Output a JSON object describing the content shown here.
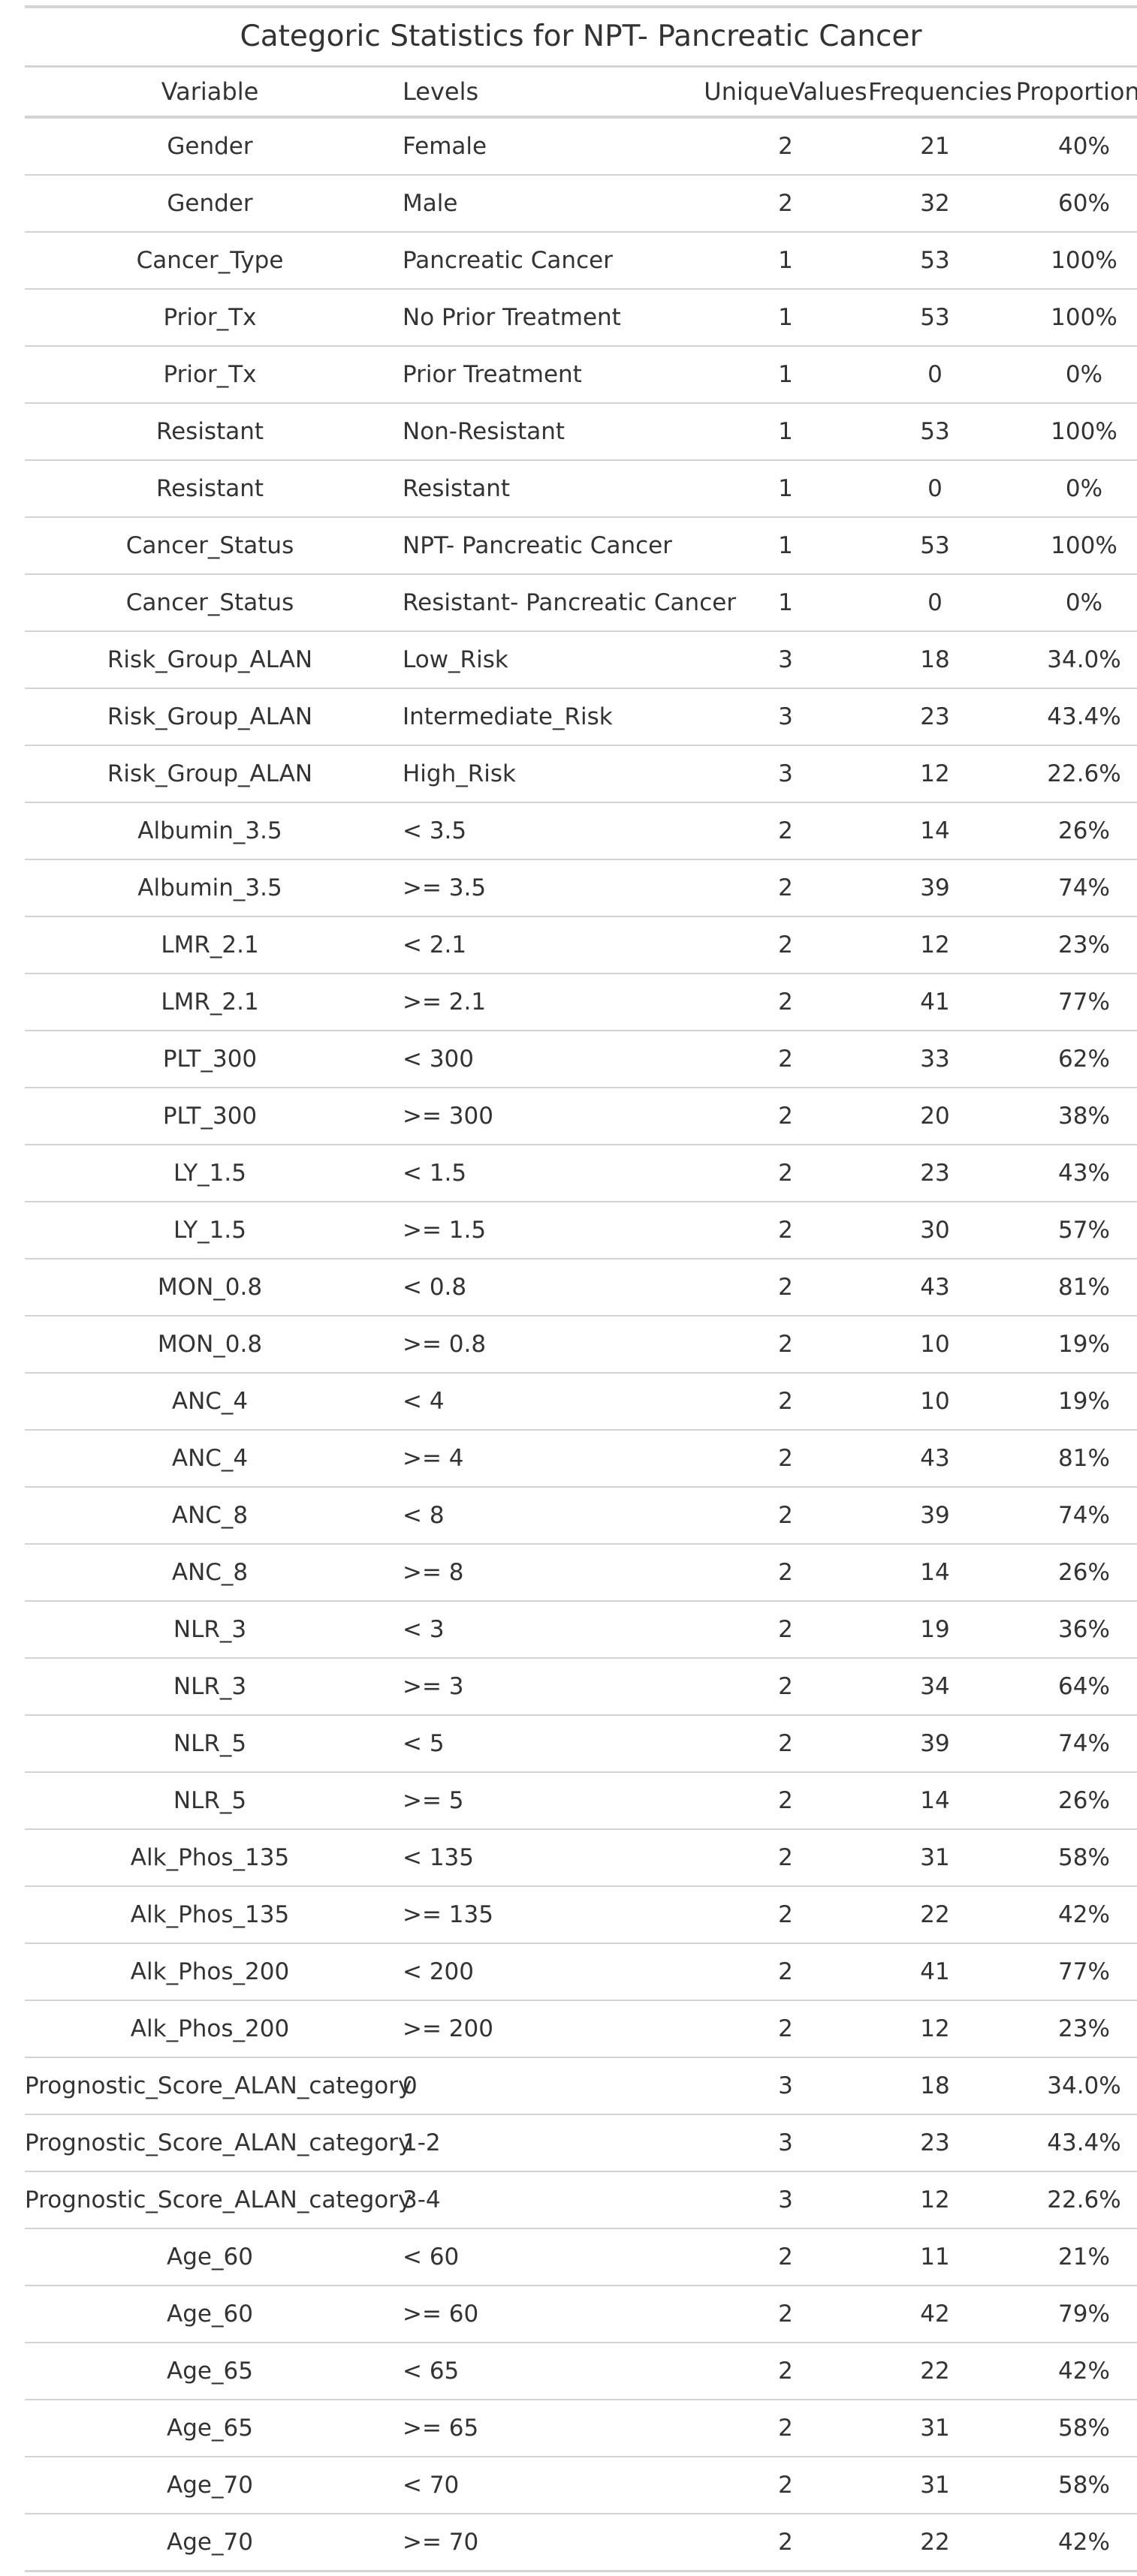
{
  "table": {
    "title": "Categoric Statistics for NPT- Pancreatic Cancer",
    "columns": [
      "Variable",
      "Levels",
      "UniqueValues",
      "Frequencies",
      "Proportions"
    ],
    "rows": [
      [
        "Gender",
        "Female",
        "2",
        "21",
        "40%"
      ],
      [
        "Gender",
        "Male",
        "2",
        "32",
        "60%"
      ],
      [
        "Cancer_Type",
        "Pancreatic Cancer",
        "1",
        "53",
        "100%"
      ],
      [
        "Prior_Tx",
        "No Prior Treatment",
        "1",
        "53",
        "100%"
      ],
      [
        "Prior_Tx",
        "Prior Treatment",
        "1",
        "0",
        "0%"
      ],
      [
        "Resistant",
        "Non-Resistant",
        "1",
        "53",
        "100%"
      ],
      [
        "Resistant",
        "Resistant",
        "1",
        "0",
        "0%"
      ],
      [
        "Cancer_Status",
        "NPT- Pancreatic Cancer",
        "1",
        "53",
        "100%"
      ],
      [
        "Cancer_Status",
        "Resistant- Pancreatic Cancer",
        "1",
        "0",
        "0%"
      ],
      [
        "Risk_Group_ALAN",
        "Low_Risk",
        "3",
        "18",
        "34.0%"
      ],
      [
        "Risk_Group_ALAN",
        "Intermediate_Risk",
        "3",
        "23",
        "43.4%"
      ],
      [
        "Risk_Group_ALAN",
        "High_Risk",
        "3",
        "12",
        "22.6%"
      ],
      [
        "Albumin_3.5",
        "< 3.5",
        "2",
        "14",
        "26%"
      ],
      [
        "Albumin_3.5",
        ">= 3.5",
        "2",
        "39",
        "74%"
      ],
      [
        "LMR_2.1",
        "< 2.1",
        "2",
        "12",
        "23%"
      ],
      [
        "LMR_2.1",
        ">= 2.1",
        "2",
        "41",
        "77%"
      ],
      [
        "PLT_300",
        "< 300",
        "2",
        "33",
        "62%"
      ],
      [
        "PLT_300",
        ">= 300",
        "2",
        "20",
        "38%"
      ],
      [
        "LY_1.5",
        "< 1.5",
        "2",
        "23",
        "43%"
      ],
      [
        "LY_1.5",
        ">= 1.5",
        "2",
        "30",
        "57%"
      ],
      [
        "MON_0.8",
        "< 0.8",
        "2",
        "43",
        "81%"
      ],
      [
        "MON_0.8",
        ">= 0.8",
        "2",
        "10",
        "19%"
      ],
      [
        "ANC_4",
        "< 4",
        "2",
        "10",
        "19%"
      ],
      [
        "ANC_4",
        ">= 4",
        "2",
        "43",
        "81%"
      ],
      [
        "ANC_8",
        "< 8",
        "2",
        "39",
        "74%"
      ],
      [
        "ANC_8",
        ">= 8",
        "2",
        "14",
        "26%"
      ],
      [
        "NLR_3",
        "< 3",
        "2",
        "19",
        "36%"
      ],
      [
        "NLR_3",
        ">= 3",
        "2",
        "34",
        "64%"
      ],
      [
        "NLR_5",
        "< 5",
        "2",
        "39",
        "74%"
      ],
      [
        "NLR_5",
        ">= 5",
        "2",
        "14",
        "26%"
      ],
      [
        "Alk_Phos_135",
        "< 135",
        "2",
        "31",
        "58%"
      ],
      [
        "Alk_Phos_135",
        ">= 135",
        "2",
        "22",
        "42%"
      ],
      [
        "Alk_Phos_200",
        "< 200",
        "2",
        "41",
        "77%"
      ],
      [
        "Alk_Phos_200",
        ">= 200",
        "2",
        "12",
        "23%"
      ],
      [
        "Prognostic_Score_ALAN_category",
        "0",
        "3",
        "18",
        "34.0%"
      ],
      [
        "Prognostic_Score_ALAN_category",
        "1-2",
        "3",
        "23",
        "43.4%"
      ],
      [
        "Prognostic_Score_ALAN_category",
        "3-4",
        "3",
        "12",
        "22.6%"
      ],
      [
        "Age_60",
        "< 60",
        "2",
        "11",
        "21%"
      ],
      [
        "Age_60",
        ">= 60",
        "2",
        "42",
        "79%"
      ],
      [
        "Age_65",
        "< 65",
        "2",
        "22",
        "42%"
      ],
      [
        "Age_65",
        ">= 65",
        "2",
        "31",
        "58%"
      ],
      [
        "Age_70",
        "< 70",
        "2",
        "31",
        "58%"
      ],
      [
        "Age_70",
        ">= 70",
        "2",
        "22",
        "42%"
      ]
    ]
  }
}
